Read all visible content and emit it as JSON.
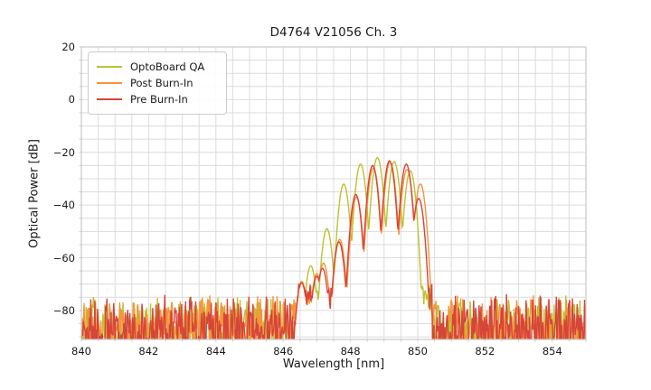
{
  "chart_data": {
    "type": "line",
    "title": "D4764 V21056 Ch. 3",
    "xlabel": "Wavelength [nm]",
    "ylabel": "Optical Power [dB]",
    "xlim": [
      840,
      855
    ],
    "ylim": [
      -91,
      20
    ],
    "xticks": [
      840,
      842,
      844,
      846,
      848,
      850,
      852,
      854
    ],
    "yticks": [
      20,
      0,
      -20,
      -40,
      -60,
      -80
    ],
    "x_minor_step": 0.5,
    "y_minor_step": 5,
    "grid": true,
    "legend_position": "upper left",
    "mode_falloff_db_per_nm2": 430,
    "noise": {
      "deep_band_top_db": -73.5,
      "deep_spike_min_db": -97,
      "shallow_region_nm": [
        846.45,
        850.42
      ],
      "shallow_band_top_db": -69.5,
      "shallow_band_bottom_db": -82.5
    },
    "series": [
      {
        "name": "OptoBoard QA",
        "color": "#bcc22e",
        "peaks": [
          [
            846.55,
            -69
          ],
          [
            846.82,
            -63
          ],
          [
            847.3,
            -49
          ],
          [
            847.8,
            -32
          ],
          [
            848.3,
            -24.5
          ],
          [
            848.8,
            -22
          ],
          [
            849.3,
            -23.5
          ],
          [
            849.78,
            -27
          ]
        ]
      },
      {
        "name": "Post Burn-In",
        "color": "#f7943a",
        "peaks": [
          [
            846.55,
            -69
          ],
          [
            847.0,
            -66
          ],
          [
            847.2,
            -62
          ],
          [
            847.68,
            -53
          ],
          [
            848.18,
            -37
          ],
          [
            848.68,
            -26
          ],
          [
            849.18,
            -23.8
          ],
          [
            849.68,
            -26.5
          ],
          [
            850.08,
            -32
          ]
        ]
      },
      {
        "name": "Pre Burn-In",
        "color": "#d6453a",
        "peaks": [
          [
            846.55,
            -69.5
          ],
          [
            847.0,
            -67
          ],
          [
            847.17,
            -64
          ],
          [
            847.66,
            -54
          ],
          [
            848.16,
            -36
          ],
          [
            848.66,
            -25
          ],
          [
            849.16,
            -23.2
          ],
          [
            849.66,
            -24.5
          ],
          [
            850.03,
            -37.5
          ]
        ]
      }
    ],
    "colors": {
      "grid": "#dcdcdc",
      "spine": "#c9c9c9",
      "text": "#1a1a1a",
      "background": "#ffffff"
    }
  }
}
